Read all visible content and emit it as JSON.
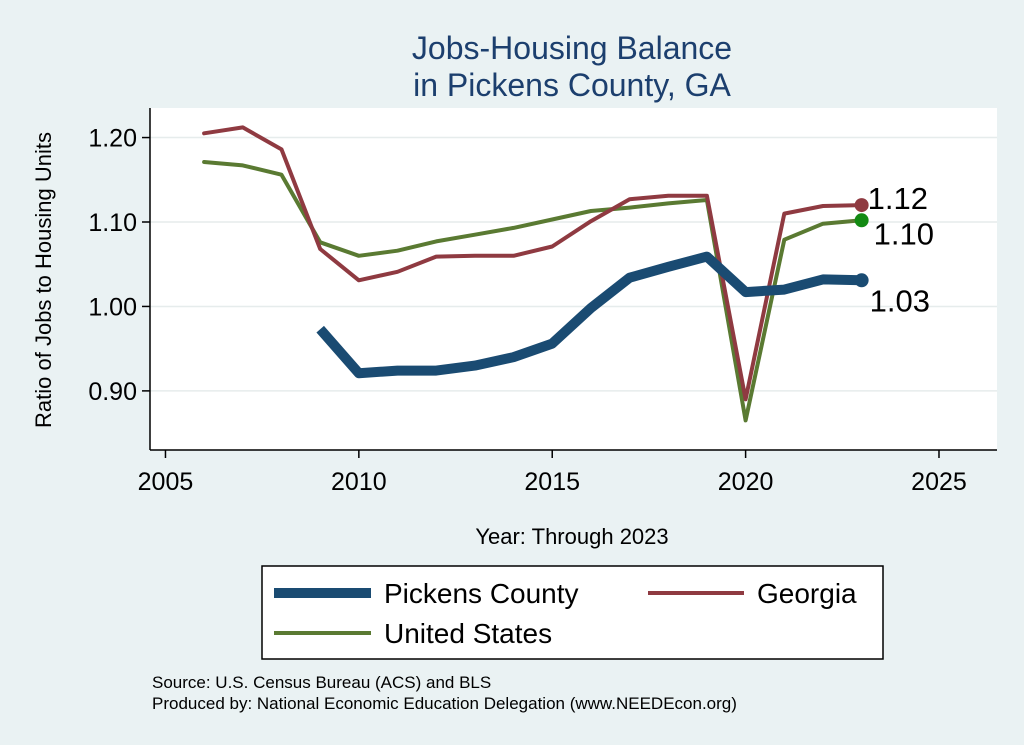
{
  "chart_data": {
    "type": "line",
    "title_lines": [
      "Jobs-Housing Balance",
      "in Pickens County, GA"
    ],
    "xlabel": "Year: Through 2023",
    "ylabel": "Ratio of Jobs to Housing Units",
    "xlim": [
      2004.6,
      2026.5
    ],
    "ylim": [
      0.83,
      1.235
    ],
    "xticks": [
      2005,
      2010,
      2015,
      2020,
      2025
    ],
    "yticks": [
      0.9,
      1.0,
      1.1,
      1.2
    ],
    "ytick_labels": [
      "0.90",
      "1.00",
      "1.10",
      "1.20"
    ],
    "grid": "horizontal",
    "legend_position": "bottom",
    "series": [
      {
        "name": "Pickens County",
        "color": "#1a4b72",
        "x": [
          2009,
          2010,
          2011,
          2012,
          2013,
          2014,
          2015,
          2016,
          2017,
          2018,
          2019,
          2020,
          2021,
          2022,
          2023
        ],
        "y": [
          0.973,
          0.921,
          0.924,
          0.924,
          0.93,
          0.94,
          0.956,
          0.998,
          1.034,
          1.047,
          1.059,
          1.017,
          1.02,
          1.032,
          1.031
        ],
        "end_label": "1.03"
      },
      {
        "name": "Georgia",
        "color": "#8f3a41",
        "x": [
          2006,
          2007,
          2008,
          2009,
          2010,
          2011,
          2012,
          2013,
          2014,
          2015,
          2016,
          2017,
          2018,
          2019,
          2020,
          2021,
          2022,
          2023
        ],
        "y": [
          1.205,
          1.212,
          1.186,
          1.068,
          1.031,
          1.041,
          1.059,
          1.06,
          1.06,
          1.071,
          1.101,
          1.127,
          1.131,
          1.131,
          0.89,
          1.11,
          1.119,
          1.12
        ],
        "end_label": "1.12"
      },
      {
        "name": "United States",
        "color": "#5a7a32",
        "x": [
          2006,
          2007,
          2008,
          2009,
          2010,
          2011,
          2012,
          2013,
          2014,
          2015,
          2016,
          2017,
          2018,
          2019,
          2020,
          2021,
          2022,
          2023
        ],
        "y": [
          1.171,
          1.167,
          1.156,
          1.076,
          1.06,
          1.066,
          1.077,
          1.085,
          1.093,
          1.103,
          1.113,
          1.117,
          1.122,
          1.126,
          0.865,
          1.079,
          1.098,
          1.102
        ],
        "end_label": "1.10",
        "end_marker_color": "#138a13"
      }
    ],
    "source_lines": [
      "Source: U.S. Census Bureau (ACS) and BLS",
      "Produced by: National Economic Education Delegation (www.NEEDEcon.org)"
    ]
  }
}
